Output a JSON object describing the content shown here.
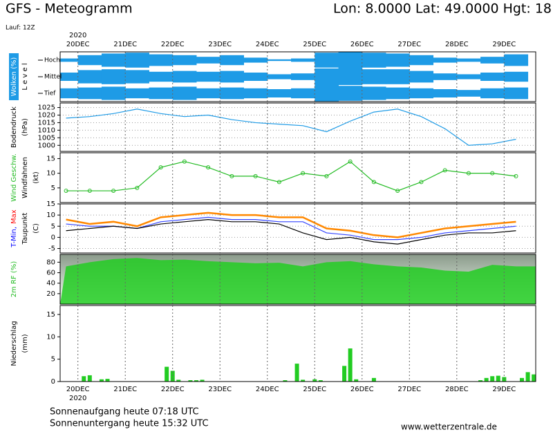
{
  "header": {
    "title": "GFS - Meteogramm",
    "location": "Lon: 8.0000 Lat: 49.0000 Hgt: 18",
    "run": "Lauf: 12Z"
  },
  "time_axis": {
    "year": "2020",
    "xlim": [
      -9,
      232
    ],
    "xticks": [
      {
        "value": 0,
        "label": "20DEC"
      },
      {
        "value": 24,
        "label": "21DEC"
      },
      {
        "value": 48,
        "label": "22DEC"
      },
      {
        "value": 72,
        "label": "23DEC"
      },
      {
        "value": 96,
        "label": "24DEC"
      },
      {
        "value": 120,
        "label": "25DEC"
      },
      {
        "value": 144,
        "label": "26DEC"
      },
      {
        "value": 168,
        "label": "27DEC"
      },
      {
        "value": 192,
        "label": "28DEC"
      },
      {
        "value": 216,
        "label": "29DEC"
      }
    ],
    "x": [
      -6,
      6,
      18,
      30,
      42,
      54,
      66,
      78,
      90,
      102,
      114,
      126,
      138,
      150,
      162,
      174,
      186,
      198,
      210,
      222
    ]
  },
  "chart_data": [
    {
      "type": "clouds",
      "color": "#1e9be6",
      "ylabel": [
        [
          {
            "text": "Wolken (%)",
            "color": "#ffffff",
            "bg": "#1e9be6"
          }
        ],
        [
          {
            "text": "L e v e l",
            "color": "#000000"
          }
        ]
      ],
      "levels": [
        {
          "name": "Hoch",
          "values": [
            20,
            60,
            80,
            90,
            70,
            60,
            40,
            60,
            30,
            10,
            20,
            90,
            100,
            90,
            80,
            60,
            30,
            20,
            40,
            70
          ]
        },
        {
          "name": "Mittel",
          "values": [
            50,
            80,
            90,
            80,
            60,
            70,
            60,
            70,
            50,
            30,
            40,
            100,
            100,
            90,
            90,
            70,
            40,
            30,
            50,
            60
          ]
        },
        {
          "name": "Tief",
          "values": [
            60,
            70,
            80,
            60,
            70,
            80,
            60,
            70,
            60,
            50,
            60,
            100,
            90,
            80,
            70,
            60,
            50,
            40,
            60,
            70
          ]
        }
      ]
    },
    {
      "type": "line",
      "grid": true,
      "ylabel": [
        [
          {
            "text": "Bodendruck",
            "color": "#000000"
          }
        ],
        [
          {
            "text": "(hPa)",
            "color": "#000000"
          }
        ]
      ],
      "ylim": [
        996,
        1028
      ],
      "yticks": [
        1000,
        1005,
        1010,
        1015,
        1020,
        1025
      ],
      "series": [
        {
          "color": "#1e9be6",
          "values": [
            1018,
            1019,
            1021,
            1024,
            1021,
            1019,
            1020,
            1017,
            1015,
            1014,
            1013,
            1009,
            1016,
            1022,
            1024,
            1019,
            1011,
            1000,
            1001,
            1004
          ]
        }
      ]
    },
    {
      "type": "line",
      "markers": true,
      "grid": false,
      "ylabel": [
        [
          {
            "text": "Wind Geschw.",
            "color": "#22bb22"
          }
        ],
        [
          {
            "text": "Windfahnen",
            "color": "#000000"
          }
        ],
        [
          {
            "text": "(kt)",
            "color": "#000000"
          }
        ]
      ],
      "ylim": [
        0,
        17
      ],
      "yticks": [
        5,
        10,
        15
      ],
      "series": [
        {
          "color": "#22bb22",
          "values": [
            4,
            4,
            4,
            5,
            12,
            14,
            12,
            9,
            9,
            7,
            10,
            9,
            14,
            7,
            4,
            7,
            11,
            10,
            10,
            9
          ]
        }
      ]
    },
    {
      "type": "line",
      "grid": true,
      "ylabel": [
        [
          {
            "text": "T-Min,",
            "color": "#0000ff"
          },
          {
            "text": "Max",
            "color": "#ff0000"
          }
        ],
        [
          {
            "text": "Taupunkt",
            "color": "#000000"
          }
        ],
        [
          {
            "text": "(C)",
            "color": "#000000"
          }
        ]
      ],
      "ylim": [
        -7,
        15
      ],
      "yticks": [
        -5,
        0,
        5,
        10,
        15
      ],
      "series": [
        {
          "color": "#ff8800",
          "values": [
            8,
            6,
            7,
            5,
            9,
            10,
            11,
            10,
            10,
            9,
            9,
            4,
            3,
            1,
            0,
            2,
            4,
            5,
            6,
            7
          ]
        },
        {
          "color": "#3344ff",
          "values": [
            6,
            5,
            5,
            4,
            7,
            8,
            9,
            8,
            8,
            7,
            7,
            2,
            1,
            -1,
            -1,
            0,
            2,
            3,
            4,
            5
          ]
        },
        {
          "color": "#000000",
          "values": [
            3,
            4,
            5,
            4,
            6,
            7,
            8,
            7,
            7,
            6,
            2,
            -1,
            0,
            -2,
            -3,
            -1,
            1,
            2,
            2,
            3
          ]
        }
      ]
    },
    {
      "type": "area",
      "color": "#22cc22",
      "ylabel": [
        [
          {
            "text": "2m RF (%)",
            "color": "#22bb22"
          }
        ]
      ],
      "ylim": [
        0,
        95
      ],
      "yticks": [
        20,
        40,
        60,
        80
      ],
      "values": [
        72,
        80,
        86,
        88,
        84,
        85,
        82,
        80,
        78,
        79,
        72,
        80,
        82,
        76,
        72,
        70,
        64,
        62,
        75,
        72
      ]
    },
    {
      "type": "bar",
      "color": "#22cc22",
      "ylabel": [
        [
          {
            "text": "Niederschlag",
            "color": "#000000"
          }
        ],
        [
          {
            "text": "(mm)",
            "color": "#000000"
          }
        ]
      ],
      "ylim": [
        0,
        17
      ],
      "yticks": [
        0,
        5,
        10,
        15
      ],
      "x": [
        3,
        6,
        12,
        15,
        45,
        48,
        51,
        57,
        60,
        63,
        105,
        111,
        114,
        120,
        123,
        135,
        138,
        141,
        150,
        204,
        207,
        210,
        213,
        216,
        225,
        228,
        231
      ],
      "values": [
        1.2,
        1.4,
        0.5,
        0.6,
        3.3,
        2.4,
        0.4,
        0.3,
        0.3,
        0.4,
        0.3,
        4.0,
        0.4,
        0.5,
        0.3,
        3.5,
        7.4,
        0.5,
        0.8,
        0.3,
        0.8,
        1.2,
        1.3,
        1.0,
        0.8,
        2.1,
        1.6
      ]
    }
  ],
  "footer": {
    "sunrise": "Sonnenaufgang heute 07:18 UTC",
    "sunset": "Sonnenuntergang heute 15:32 UTC",
    "website": "www.wetterzentrale.de"
  }
}
